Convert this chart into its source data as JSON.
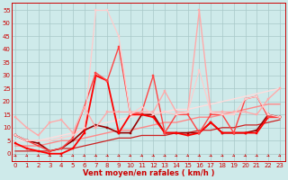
{
  "xlabel": "Vent moyen/en rafales ( km/h )",
  "bg_color": "#ceeaea",
  "grid_color": "#a8c8c8",
  "xticks": [
    0,
    1,
    2,
    3,
    4,
    5,
    6,
    7,
    8,
    9,
    10,
    11,
    12,
    13,
    14,
    15,
    16,
    17,
    18,
    19,
    20,
    21,
    22,
    23
  ],
  "yticks": [
    0,
    5,
    10,
    15,
    20,
    25,
    30,
    35,
    40,
    45,
    50,
    55
  ],
  "ylim": [
    -3,
    58
  ],
  "xlim": [
    -0.3,
    23.5
  ],
  "series": [
    {
      "x": [
        0,
        1,
        2,
        3,
        4,
        5,
        6,
        7,
        8,
        9,
        10,
        11,
        12,
        13,
        14,
        15,
        16,
        17,
        18,
        19,
        20,
        21,
        22,
        23
      ],
      "y": [
        7,
        5,
        4,
        1,
        2,
        5,
        9,
        11,
        10,
        8,
        8,
        15,
        15,
        8,
        8,
        8,
        8,
        12,
        8,
        8,
        8,
        9,
        15,
        14
      ],
      "color": "#990000",
      "lw": 1.2,
      "marker": "s",
      "ms": 2.0
    },
    {
      "x": [
        0,
        1,
        2,
        3,
        4,
        5,
        6,
        7,
        8,
        9,
        10,
        11,
        12,
        13,
        14,
        15,
        16,
        17,
        18,
        19,
        20,
        21,
        22,
        23
      ],
      "y": [
        4,
        2,
        1,
        0,
        0,
        2,
        8,
        30,
        28,
        8,
        15,
        15,
        14,
        8,
        8,
        7,
        8,
        12,
        8,
        8,
        8,
        8,
        14,
        14
      ],
      "color": "#ff0000",
      "lw": 1.3,
      "marker": "s",
      "ms": 2.0
    },
    {
      "x": [
        0,
        1,
        2,
        3,
        4,
        5,
        6,
        7,
        8,
        9,
        10,
        11,
        12,
        13,
        14,
        15,
        16,
        17,
        18,
        19,
        20,
        21,
        22,
        23
      ],
      "y": [
        7,
        5,
        3,
        1,
        2,
        6,
        18,
        31,
        28,
        41,
        15,
        16,
        30,
        8,
        15,
        15,
        8,
        15,
        15,
        8,
        21,
        22,
        14,
        14
      ],
      "color": "#ff4444",
      "lw": 1.0,
      "marker": "s",
      "ms": 1.8
    },
    {
      "x": [
        0,
        1,
        2,
        3,
        4,
        5,
        6,
        7,
        8,
        9,
        10,
        11,
        12,
        13,
        14,
        15,
        16,
        17,
        18,
        19,
        20,
        21,
        22,
        23
      ],
      "y": [
        14,
        10,
        7,
        12,
        13,
        8,
        18,
        10,
        16,
        16,
        16,
        16,
        16,
        24,
        16,
        16,
        55,
        16,
        16,
        16,
        16,
        15,
        21,
        25
      ],
      "color": "#ffaaaa",
      "lw": 1.0,
      "marker": "s",
      "ms": 1.8
    },
    {
      "x": [
        0,
        1,
        2,
        3,
        4,
        5,
        6,
        7,
        8,
        9,
        10,
        11,
        12,
        13,
        14,
        15,
        16,
        17,
        18,
        19,
        20,
        21,
        22,
        23
      ],
      "y": [
        7,
        5,
        5,
        5,
        6,
        7,
        10,
        55,
        55,
        45,
        15,
        18,
        15,
        16,
        15,
        16,
        32,
        16,
        15,
        15,
        21,
        22,
        15,
        14
      ],
      "color": "#ffcccc",
      "lw": 0.9,
      "marker": "s",
      "ms": 1.5
    },
    {
      "x": [
        0,
        1,
        2,
        3,
        4,
        5,
        6,
        7,
        8,
        9,
        10,
        11,
        12,
        13,
        14,
        15,
        16,
        17,
        18,
        19,
        20,
        21,
        22,
        23
      ],
      "y": [
        3,
        3,
        3,
        4,
        5,
        5,
        6,
        7,
        8,
        9,
        9,
        10,
        11,
        12,
        12,
        13,
        14,
        14,
        15,
        16,
        17,
        18,
        19,
        19
      ],
      "color": "#ff8888",
      "lw": 1.0,
      "marker": null,
      "ms": 0
    },
    {
      "x": [
        0,
        1,
        2,
        3,
        4,
        5,
        6,
        7,
        8,
        9,
        10,
        11,
        12,
        13,
        14,
        15,
        16,
        17,
        18,
        19,
        20,
        21,
        22,
        23
      ],
      "y": [
        5,
        5,
        5,
        6,
        7,
        8,
        9,
        11,
        12,
        13,
        14,
        15,
        16,
        16,
        17,
        17,
        18,
        19,
        20,
        21,
        22,
        23,
        24,
        25
      ],
      "color": "#ffdddd",
      "lw": 1.0,
      "marker": null,
      "ms": 0
    },
    {
      "x": [
        0,
        1,
        2,
        3,
        4,
        5,
        6,
        7,
        8,
        9,
        10,
        11,
        12,
        13,
        14,
        15,
        16,
        17,
        18,
        19,
        20,
        21,
        22,
        23
      ],
      "y": [
        1,
        1,
        1,
        1,
        2,
        2,
        3,
        4,
        5,
        6,
        6,
        7,
        7,
        7,
        8,
        8,
        9,
        9,
        10,
        10,
        11,
        11,
        12,
        13
      ],
      "color": "#cc2222",
      "lw": 0.9,
      "marker": null,
      "ms": 0
    }
  ],
  "arrow_color": "#cc0000",
  "tick_color": "#cc0000",
  "tick_fontsize": 5,
  "xlabel_fontsize": 6
}
